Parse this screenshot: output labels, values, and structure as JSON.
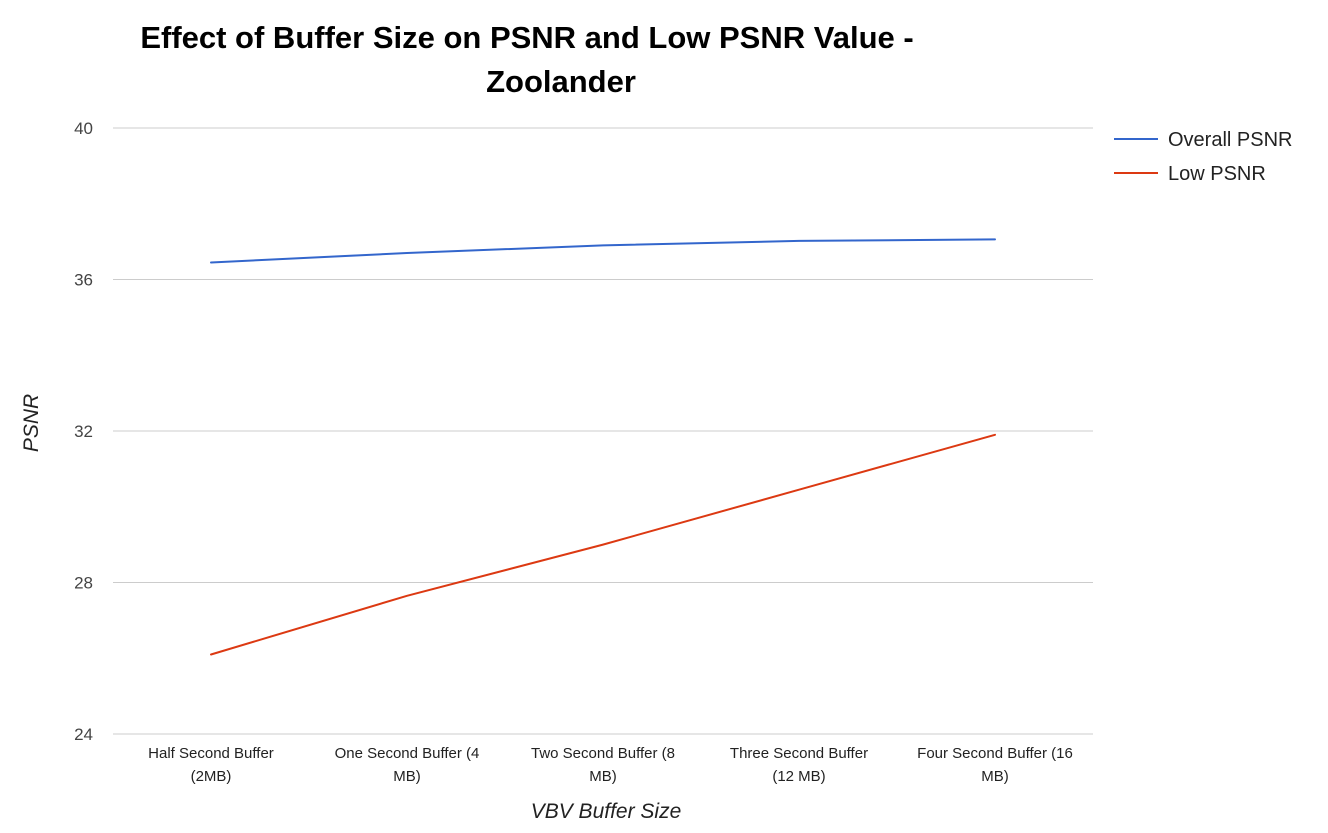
{
  "chart_data": {
    "type": "line",
    "title_lines": [
      "Effect of Buffer Size on PSNR and Low PSNR Value -",
      "Zoolander"
    ],
    "xlabel": "VBV Buffer Size",
    "ylabel": "PSNR",
    "ylim": [
      24,
      40
    ],
    "yticks": [
      "24",
      "28",
      "32",
      "36",
      "40"
    ],
    "grid": true,
    "legend_position": "right",
    "categories": [
      [
        "Half Second Buffer",
        "(2MB)"
      ],
      [
        "One Second Buffer (4",
        "MB)"
      ],
      [
        "Two Second Buffer (8",
        "MB)"
      ],
      [
        "Three Second Buffer",
        "(12 MB)"
      ],
      [
        "Four Second Buffer (16",
        "MB)"
      ]
    ],
    "series": [
      {
        "name": "Overall PSNR",
        "color": "#3366cc",
        "values": [
          36.45,
          36.7,
          36.9,
          37.02,
          37.06
        ]
      },
      {
        "name": "Low PSNR",
        "color": "#dc3912",
        "values": [
          26.1,
          27.65,
          29.0,
          30.45,
          31.9
        ]
      }
    ]
  }
}
